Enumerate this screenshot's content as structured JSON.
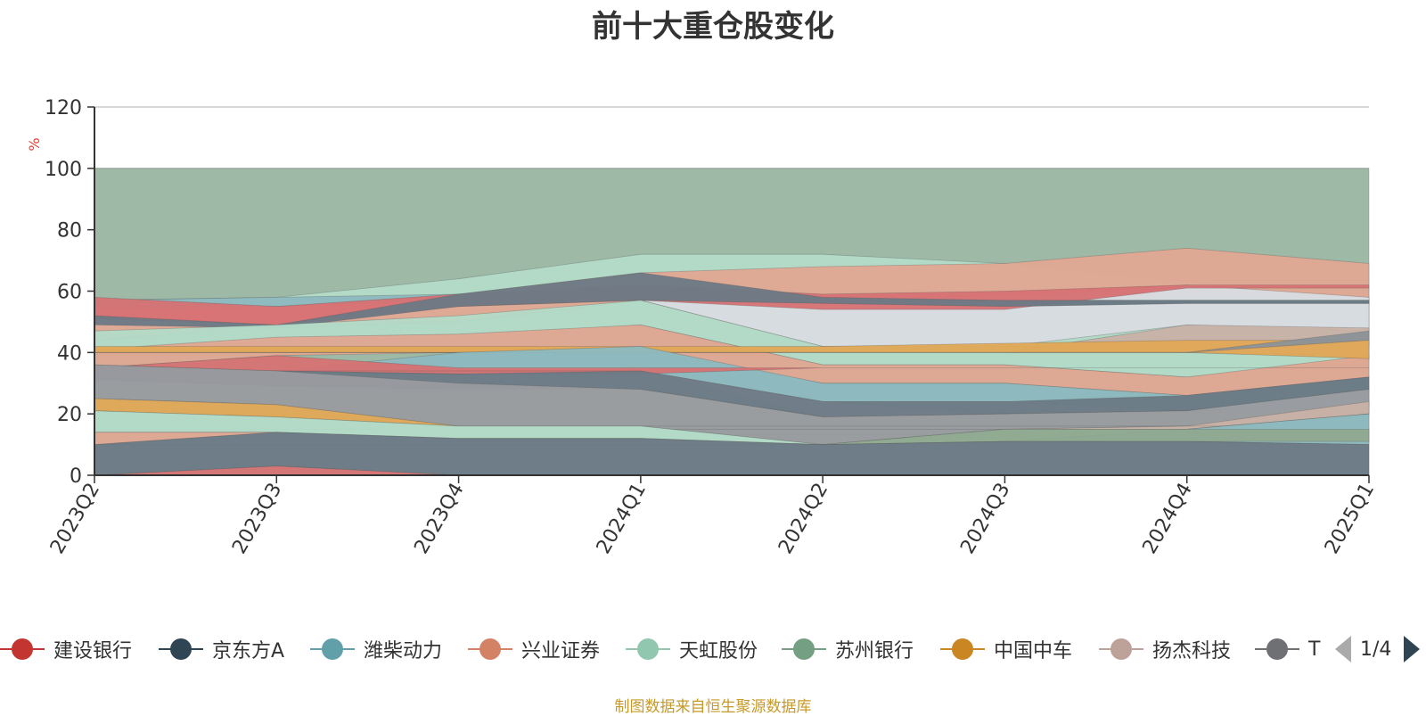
{
  "colors": {
    "axis": "#333333",
    "grid": "#cccccc",
    "unit_label": "#e8403a",
    "pager_inactive": "#aaaaaa",
    "pager_active": "#2f4554",
    "source_note": "#c59a2a"
  },
  "legend": {
    "items": [
      {
        "label": "建设银行",
        "color": "#c23531"
      },
      {
        "label": "京东方A",
        "color": "#2f4554"
      },
      {
        "label": "潍柴动力",
        "color": "#61a0a8"
      },
      {
        "label": "兴业证券",
        "color": "#d48265"
      },
      {
        "label": "天虹股份",
        "color": "#91c7ae"
      },
      {
        "label": "苏州银行",
        "color": "#749f83"
      },
      {
        "label": "中国中车",
        "color": "#ca8622"
      },
      {
        "label": "扬杰科技",
        "color": "#bda29a"
      },
      {
        "label": "T",
        "color": "#6e7074"
      }
    ],
    "page": "1/4",
    "prev_icon": "arrow-left-icon",
    "next_icon": "arrow-right-icon"
  },
  "source_note": "制图数据来自恒生聚源数据库",
  "chart_data": {
    "type": "area",
    "title": "前十大重仓股变化",
    "ylabel": "%",
    "xlabel": "",
    "ylim": [
      0,
      120
    ],
    "yticks": [
      0,
      20,
      40,
      60,
      80,
      100,
      120
    ],
    "grid": true,
    "legend_position": "bottom",
    "categories": [
      "2023Q2",
      "2023Q3",
      "2023Q4",
      "2024Q1",
      "2024Q2",
      "2024Q3",
      "2024Q4",
      "2025Q1"
    ],
    "bands": [
      {
        "color": "#9ebaa7",
        "upper": [
          100,
          100,
          100,
          100,
          100,
          100,
          100,
          100
        ],
        "lower": [
          0,
          0,
          0,
          0,
          0,
          0,
          0,
          0
        ]
      },
      {
        "color": "#b3dbc8",
        "upper": [
          57,
          58,
          64,
          72,
          72,
          69,
          63,
          58
        ],
        "lower": [
          44,
          48,
          52,
          57,
          42,
          42,
          42,
          42
        ]
      },
      {
        "color": "#e2a892",
        "upper": [
          57,
          55,
          59,
          66,
          68,
          69,
          74,
          69
        ],
        "lower": [
          44,
          49,
          50,
          57,
          57,
          57,
          58,
          58
        ]
      },
      {
        "color": "#d8dce1",
        "upper": [
          44,
          48,
          50,
          57,
          58,
          58,
          62,
          58
        ],
        "lower": [
          44,
          48,
          50,
          57,
          42,
          42,
          49,
          47
        ]
      },
      {
        "color": "#8db9c0",
        "upper": [
          57,
          58,
          59,
          60,
          58,
          57,
          57,
          57
        ],
        "lower": [
          54,
          55,
          57,
          58,
          56,
          55,
          56,
          56
        ]
      },
      {
        "color": "#d77173",
        "upper": [
          58,
          55,
          59,
          62,
          59,
          60,
          62,
          62
        ],
        "lower": [
          51,
          49,
          55,
          57,
          54,
          54,
          61,
          61
        ]
      },
      {
        "color": "#6b7985",
        "upper": [
          52,
          49,
          59,
          66,
          58,
          57,
          57,
          57
        ],
        "lower": [
          49,
          48,
          55,
          57,
          56,
          55,
          56,
          56
        ]
      },
      {
        "color": "#b3dbc8",
        "upper": [
          47,
          49,
          52,
          57,
          42,
          42,
          40,
          39
        ],
        "lower": [
          40,
          44,
          45,
          49,
          36,
          36,
          32,
          38
        ]
      },
      {
        "color": "#e2a892",
        "upper": [
          41,
          45,
          46,
          49,
          36,
          36,
          32,
          39
        ],
        "lower": [
          35,
          39,
          40,
          41,
          30,
          30,
          26,
          32
        ]
      },
      {
        "color": "#c9b1a6",
        "upper": [
          40,
          40,
          40,
          40,
          40,
          40,
          49,
          48
        ],
        "lower": [
          40,
          40,
          40,
          40,
          40,
          40,
          40,
          39
        ]
      },
      {
        "color": "#e1a855",
        "upper": [
          42,
          42,
          42,
          42,
          42,
          43,
          44,
          44
        ],
        "lower": [
          40,
          40,
          40,
          40,
          40,
          40,
          40,
          38
        ]
      },
      {
        "color": "#8c9298",
        "upper": [
          40,
          40,
          40,
          40,
          40,
          40,
          40,
          47
        ],
        "lower": [
          40,
          40,
          40,
          40,
          40,
          40,
          40,
          44
        ]
      },
      {
        "color": "#8db9c0",
        "upper": [
          35,
          34,
          40,
          42,
          30,
          30,
          26,
          32
        ],
        "lower": [
          35,
          33,
          33,
          34,
          24,
          24,
          21,
          22
        ]
      },
      {
        "color": "#d77173",
        "upper": [
          35,
          39,
          35,
          35,
          35,
          35,
          35,
          35
        ],
        "lower": [
          35,
          34,
          33,
          33,
          35,
          35,
          35,
          35
        ]
      },
      {
        "color": "#d8dce1",
        "upper": [
          34,
          34,
          34,
          34,
          24,
          20,
          20,
          20
        ],
        "lower": [
          34,
          34,
          34,
          34,
          19,
          20,
          20,
          20
        ]
      },
      {
        "color": "#6b7985",
        "upper": [
          36,
          34,
          33,
          34,
          24,
          24,
          26,
          32
        ],
        "lower": [
          31,
          29,
          28,
          28,
          19,
          20,
          21,
          28
        ]
      },
      {
        "color": "#9a9b9f",
        "upper": [
          36,
          34,
          30,
          28,
          19,
          20,
          21,
          28
        ],
        "lower": [
          25,
          23,
          16,
          16,
          10,
          15,
          16,
          20
        ]
      },
      {
        "color": "#c9b1a6",
        "upper": [
          15,
          15,
          15,
          15,
          15,
          15,
          16,
          24
        ],
        "lower": [
          15,
          15,
          15,
          15,
          15,
          15,
          15,
          20
        ]
      },
      {
        "color": "#e1a855",
        "upper": [
          25,
          23,
          16,
          16,
          16,
          16,
          16,
          16
        ],
        "lower": [
          21,
          19,
          16,
          16,
          16,
          16,
          16,
          16
        ]
      },
      {
        "color": "#b3dbc8",
        "upper": [
          21,
          19,
          16,
          16,
          10,
          15,
          15,
          20
        ],
        "lower": [
          14,
          14,
          12,
          12,
          10,
          11,
          15,
          20
        ]
      },
      {
        "color": "#8db9c0",
        "upper": [
          10,
          10,
          10,
          10,
          10,
          11,
          15,
          20
        ],
        "lower": [
          10,
          10,
          10,
          10,
          10,
          11,
          11,
          10
        ]
      },
      {
        "color": "#8fa88f",
        "upper": [
          10,
          10,
          10,
          10,
          10,
          15,
          15,
          15
        ],
        "lower": [
          10,
          10,
          10,
          10,
          10,
          11,
          11,
          11
        ]
      },
      {
        "color": "#e2a892",
        "upper": [
          14,
          14,
          12,
          12,
          10,
          11,
          11,
          10
        ],
        "lower": [
          10,
          14,
          12,
          12,
          10,
          11,
          11,
          10
        ]
      },
      {
        "color": "#6b7985",
        "upper": [
          10,
          14,
          12,
          12,
          10,
          11,
          11,
          10
        ],
        "lower": [
          0,
          3,
          0,
          0,
          0,
          0,
          0,
          0
        ]
      },
      {
        "color": "#d77173",
        "upper": [
          0,
          3,
          0,
          0,
          0,
          0,
          0,
          0
        ],
        "lower": [
          0,
          0,
          0,
          0,
          0,
          0,
          0,
          0
        ]
      }
    ]
  }
}
